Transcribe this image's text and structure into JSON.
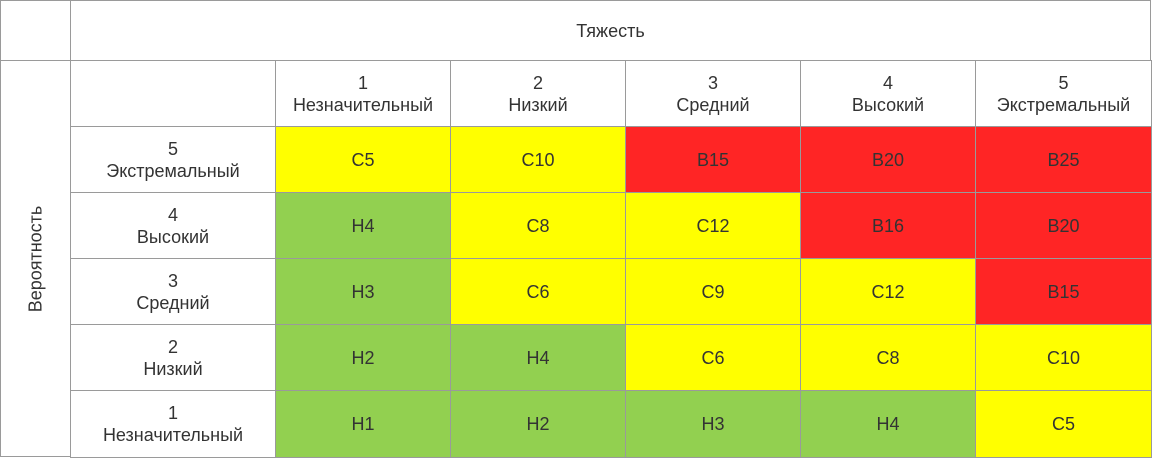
{
  "severity_title": "Тяжесть",
  "probability_title": "Вероятность",
  "severity_levels": [
    {
      "num": "1",
      "name": "Незначительный"
    },
    {
      "num": "2",
      "name": "Низкий"
    },
    {
      "num": "3",
      "name": "Средний"
    },
    {
      "num": "4",
      "name": "Высокий"
    },
    {
      "num": "5",
      "name": "Экстремальный"
    }
  ],
  "probability_levels": [
    {
      "num": "5",
      "name": "Экстремальный"
    },
    {
      "num": "4",
      "name": "Высокий"
    },
    {
      "num": "3",
      "name": "Средний"
    },
    {
      "num": "2",
      "name": "Низкий"
    },
    {
      "num": "1",
      "name": "Незначительный"
    }
  ],
  "colors": {
    "Н": "#92d050",
    "С": "#ffff00",
    "В": "#ff2525",
    "border": "#9a9a9a",
    "text": "#333333"
  },
  "cells": [
    [
      "С5",
      "С10",
      "В15",
      "В20",
      "В25"
    ],
    [
      "Н4",
      "С8",
      "С12",
      "В16",
      "В20"
    ],
    [
      "Н3",
      "С6",
      "С9",
      "С12",
      "В15"
    ],
    [
      "Н2",
      "Н4",
      "С6",
      "С8",
      "С10"
    ],
    [
      "Н1",
      "Н2",
      "Н3",
      "Н4",
      "С5"
    ]
  ]
}
